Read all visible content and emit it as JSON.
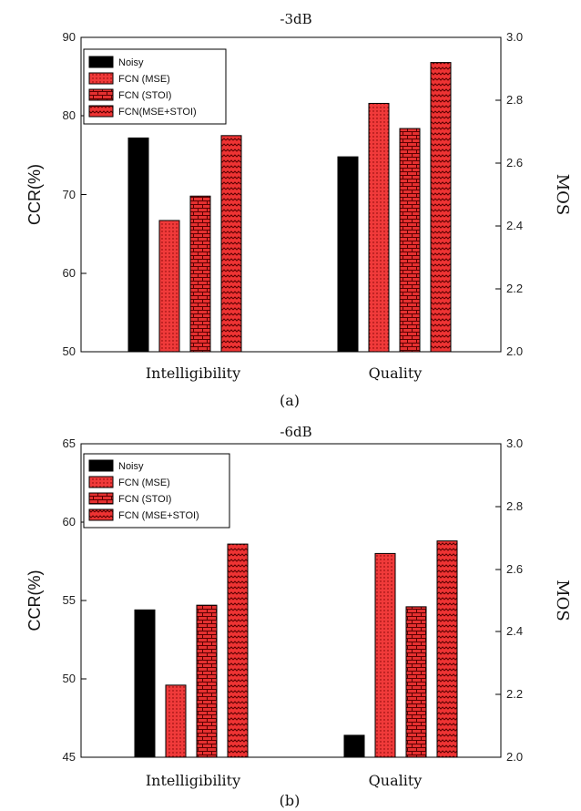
{
  "chart_data": [
    {
      "type": "bar",
      "title": "-3dB",
      "caption": "(a)",
      "categories": [
        "Intelligibility",
        "Quality"
      ],
      "ylabel_left": "CCR(%)",
      "ylabel_right": "MOS",
      "ylim_left": [
        50,
        90
      ],
      "ylim_right": [
        2.0,
        3.0
      ],
      "yticks_left": [
        "50",
        "60",
        "70",
        "80",
        "90"
      ],
      "yticks_right": [
        "2.0",
        "2.2",
        "2.4",
        "2.6",
        "2.8",
        "3.0"
      ],
      "legend_position": "top-left",
      "series": [
        {
          "name": "Noisy",
          "pattern": "solid-black",
          "values": [
            77.2,
            2.62
          ]
        },
        {
          "name": "FCN (MSE)",
          "pattern": "red-dots",
          "values": [
            66.7,
            2.79
          ]
        },
        {
          "name": "FCN (STOI)",
          "pattern": "red-bricks",
          "values": [
            69.8,
            2.71
          ]
        },
        {
          "name": "FCN(MSE+STOI)",
          "pattern": "red-zigzag",
          "values": [
            77.5,
            2.92
          ]
        }
      ]
    },
    {
      "type": "bar",
      "title": "-6dB",
      "caption": "(b)",
      "categories": [
        "Intelligibility",
        "Quality"
      ],
      "ylabel_left": "CCR(%)",
      "ylabel_right": "MOS",
      "ylim_left": [
        45,
        65
      ],
      "ylim_right": [
        2.0,
        3.0
      ],
      "yticks_left": [
        "45",
        "50",
        "55",
        "60",
        "65"
      ],
      "yticks_right": [
        "2.0",
        "2.2",
        "2.4",
        "2.6",
        "2.8",
        "3.0"
      ],
      "legend_position": "top-left",
      "series": [
        {
          "name": "Noisy",
          "pattern": "solid-black",
          "values": [
            54.4,
            2.07
          ]
        },
        {
          "name": "FCN (MSE)",
          "pattern": "red-dots",
          "values": [
            49.6,
            2.65
          ]
        },
        {
          "name": "FCN (STOI)",
          "pattern": "red-bricks",
          "values": [
            54.7,
            2.48
          ]
        },
        {
          "name": "FCN (MSE+STOI)",
          "pattern": "red-zigzag",
          "values": [
            58.6,
            2.69
          ]
        }
      ]
    }
  ]
}
